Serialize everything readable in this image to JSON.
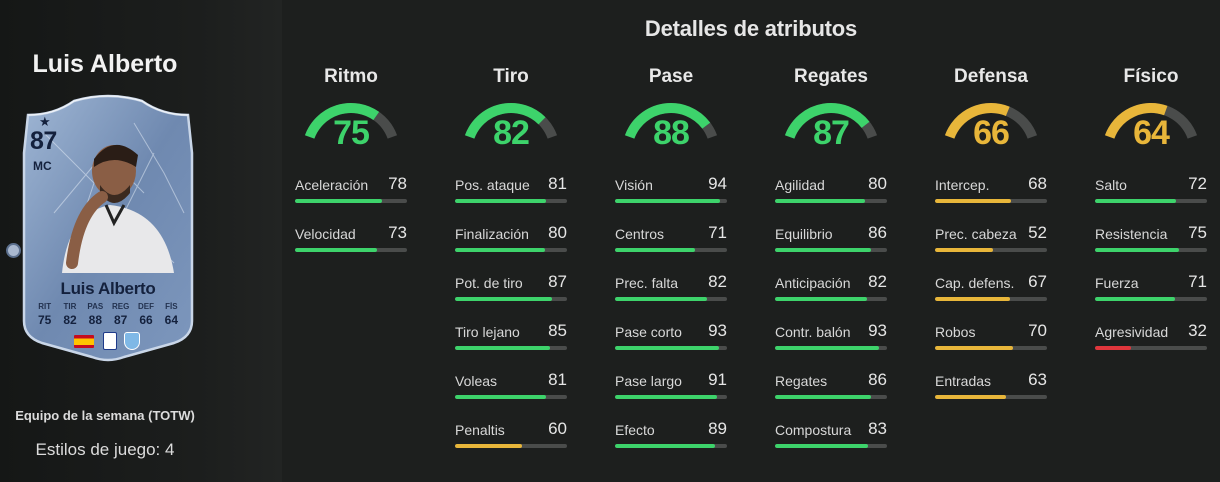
{
  "player": {
    "name": "Luis Alberto",
    "rating": "87",
    "position": "MC",
    "card_stats": [
      {
        "label": "RIT",
        "value": "75"
      },
      {
        "label": "TIR",
        "value": "82"
      },
      {
        "label": "PAS",
        "value": "88"
      },
      {
        "label": "REG",
        "value": "87"
      },
      {
        "label": "DEF",
        "value": "66"
      },
      {
        "label": "FÍS",
        "value": "64"
      }
    ],
    "card_type": "Equipo de la semana (TOTW)",
    "playstyles": "Estilos de juego: 4"
  },
  "title": "Detalles de atributos",
  "colors": {
    "green": "#3dd36b",
    "yellow": "#e8b63a",
    "red": "#e0363c",
    "track": "#4a4c4b"
  },
  "categories": [
    {
      "name": "Ritmo",
      "value": 75,
      "color": "green",
      "stats": [
        {
          "label": "Aceleración",
          "value": 78,
          "color": "green"
        },
        {
          "label": "Velocidad",
          "value": 73,
          "color": "green"
        }
      ]
    },
    {
      "name": "Tiro",
      "value": 82,
      "color": "green",
      "stats": [
        {
          "label": "Pos. ataque",
          "value": 81,
          "color": "green"
        },
        {
          "label": "Finalización",
          "value": 80,
          "color": "green"
        },
        {
          "label": "Pot. de tiro",
          "value": 87,
          "color": "green"
        },
        {
          "label": "Tiro lejano",
          "value": 85,
          "color": "green"
        },
        {
          "label": "Voleas",
          "value": 81,
          "color": "green"
        },
        {
          "label": "Penaltis",
          "value": 60,
          "color": "yellow"
        }
      ]
    },
    {
      "name": "Pase",
      "value": 88,
      "color": "green",
      "stats": [
        {
          "label": "Visión",
          "value": 94,
          "color": "green"
        },
        {
          "label": "Centros",
          "value": 71,
          "color": "green"
        },
        {
          "label": "Prec. falta",
          "value": 82,
          "color": "green"
        },
        {
          "label": "Pase corto",
          "value": 93,
          "color": "green"
        },
        {
          "label": "Pase largo",
          "value": 91,
          "color": "green"
        },
        {
          "label": "Efecto",
          "value": 89,
          "color": "green"
        }
      ]
    },
    {
      "name": "Regates",
      "value": 87,
      "color": "green",
      "stats": [
        {
          "label": "Agilidad",
          "value": 80,
          "color": "green"
        },
        {
          "label": "Equilibrio",
          "value": 86,
          "color": "green"
        },
        {
          "label": "Anticipación",
          "value": 82,
          "color": "green"
        },
        {
          "label": "Contr. balón",
          "value": 93,
          "color": "green"
        },
        {
          "label": "Regates",
          "value": 86,
          "color": "green"
        },
        {
          "label": "Compostura",
          "value": 83,
          "color": "green"
        }
      ]
    },
    {
      "name": "Defensa",
      "value": 66,
      "color": "yellow",
      "stats": [
        {
          "label": "Intercep.",
          "value": 68,
          "color": "yellow"
        },
        {
          "label": "Prec. cabeza",
          "value": 52,
          "color": "yellow"
        },
        {
          "label": "Cap. defens.",
          "value": 67,
          "color": "yellow"
        },
        {
          "label": "Robos",
          "value": 70,
          "color": "yellow"
        },
        {
          "label": "Entradas",
          "value": 63,
          "color": "yellow"
        }
      ]
    },
    {
      "name": "Físico",
      "value": 64,
      "color": "yellow",
      "stats": [
        {
          "label": "Salto",
          "value": 72,
          "color": "green"
        },
        {
          "label": "Resistencia",
          "value": 75,
          "color": "green"
        },
        {
          "label": "Fuerza",
          "value": 71,
          "color": "green"
        },
        {
          "label": "Agresividad",
          "value": 32,
          "color": "red"
        }
      ]
    }
  ]
}
